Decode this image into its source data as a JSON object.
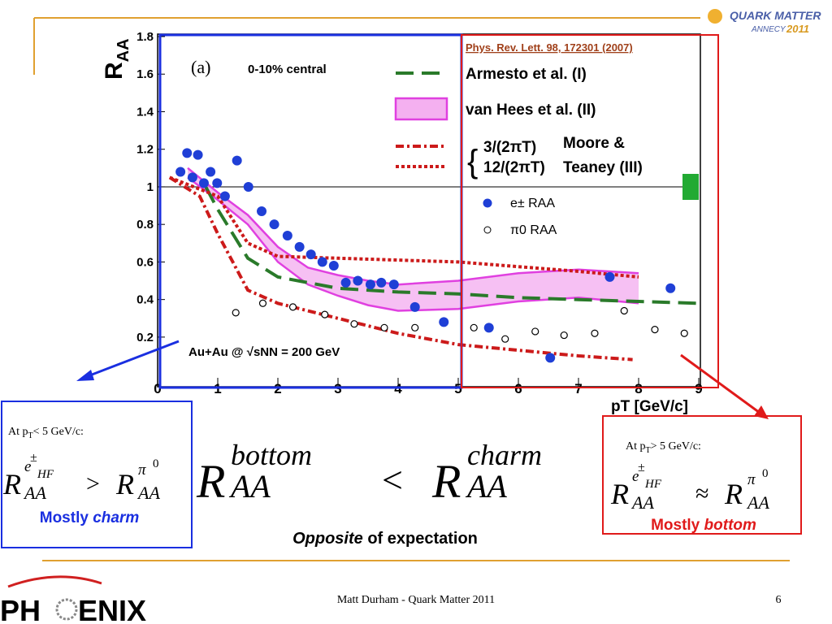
{
  "header": {
    "logo_title": "QUARK MATTER",
    "logo_place": "ANNECY",
    "logo_year": "2011"
  },
  "chart_data": {
    "type": "scatter",
    "reference": "Phys. Rev. Lett. 98, 172301 (2007)",
    "panel_label": "(a)",
    "centrality": "0-10% central",
    "system": "Au+Au @ √sNN = 200 GeV",
    "y_label": "R",
    "y_label_sub": "AA",
    "x_label": "pT [GeV/c]",
    "moore_label_1": "Moore &",
    "moore_label_2": "Teaney (III)",
    "xlim": [
      0,
      9
    ],
    "ylim": [
      -0.06,
      1.8
    ],
    "xticks": [
      0,
      1,
      2,
      3,
      4,
      5,
      6,
      7,
      8,
      9
    ],
    "yticks": [
      0.2,
      0.4,
      0.6,
      0.8,
      1,
      1.2,
      1.4,
      1.6,
      1.8
    ],
    "reference_line": 1,
    "series": [
      {
        "name": "e± RAA",
        "color": "#1f3fd6",
        "style": "marker-filled",
        "x": [
          0.38,
          0.49,
          0.58,
          0.67,
          0.77,
          0.88,
          0.99,
          1.12,
          1.32,
          1.51,
          1.73,
          1.94,
          2.16,
          2.36,
          2.55,
          2.74,
          2.93,
          3.13,
          3.33,
          3.54,
          3.72,
          3.93,
          4.28,
          4.76,
          5.51,
          6.53,
          7.52,
          8.53
        ],
        "values": [
          1.08,
          1.18,
          1.05,
          1.17,
          1.02,
          1.08,
          1.02,
          0.95,
          1.14,
          1.0,
          0.87,
          0.8,
          0.74,
          0.68,
          0.64,
          0.6,
          0.58,
          0.49,
          0.5,
          0.48,
          0.49,
          0.48,
          0.36,
          0.28,
          0.25,
          0.09,
          0.52,
          0.46
        ]
      },
      {
        "name": "π0 RAA",
        "color": "#000000",
        "style": "marker-open",
        "x": [
          1.3,
          1.75,
          2.25,
          2.78,
          3.27,
          3.77,
          4.28,
          5.26,
          5.78,
          6.28,
          6.76,
          7.27,
          7.76,
          8.27,
          8.76
        ],
        "values": [
          0.33,
          0.38,
          0.36,
          0.32,
          0.27,
          0.25,
          0.25,
          0.25,
          0.19,
          0.23,
          0.21,
          0.22,
          0.34,
          0.24,
          0.22
        ]
      },
      {
        "name": "van Hees et al. (II)",
        "color": "#e040e0",
        "style": "band",
        "x": [
          0.5,
          1,
          1.5,
          2,
          2.5,
          3,
          3.5,
          4,
          5,
          6,
          7,
          8
        ],
        "upper": [
          1.1,
          0.97,
          0.85,
          0.68,
          0.57,
          0.53,
          0.5,
          0.48,
          0.5,
          0.54,
          0.56,
          0.54
        ],
        "lower": [
          1.05,
          0.93,
          0.8,
          0.6,
          0.48,
          0.42,
          0.37,
          0.34,
          0.35,
          0.39,
          0.41,
          0.38
        ]
      },
      {
        "name": "Armesto et al. (I)",
        "color": "#2a7a2a",
        "style": "dashed",
        "x": [
          0.8,
          1,
          1.5,
          2,
          3,
          4,
          5,
          6,
          7,
          8,
          9
        ],
        "values": [
          1.0,
          0.88,
          0.62,
          0.52,
          0.46,
          0.44,
          0.43,
          0.41,
          0.4,
          0.39,
          0.38
        ]
      },
      {
        "name": "3/(2πT)",
        "color": "#cc1a1a",
        "style": "dashdot",
        "x": [
          0.2,
          0.7,
          1,
          1.5,
          2,
          3,
          4,
          5,
          6,
          7,
          7.9
        ],
        "values": [
          1.05,
          0.95,
          0.75,
          0.45,
          0.38,
          0.3,
          0.22,
          0.16,
          0.13,
          0.1,
          0.08
        ]
      },
      {
        "name": "12/(2πT)",
        "color": "#cc1a1a",
        "style": "dotted",
        "x": [
          0.2,
          1,
          1.5,
          2,
          3,
          5,
          7,
          8
        ],
        "values": [
          1.05,
          0.95,
          0.7,
          0.63,
          0.62,
          0.6,
          0.55,
          0.52
        ]
      }
    ]
  },
  "left_box": {
    "cond_p": "At p",
    "cond_sub": "T",
    "cond_rest": "< 5 GeV/c:",
    "f_R1": "R",
    "f_e": "e",
    "f_pm": "±",
    "f_hf": "HF",
    "f_aa1": "AA",
    "f_op": ">",
    "f_R2": "R",
    "f_pi": "π",
    "f_zero": "0",
    "f_aa2": "AA",
    "note": "Mostly ",
    "note_em": "charm"
  },
  "center": {
    "R1": "R",
    "sup1": "bottom",
    "sub1": "AA",
    "op": "<",
    "R2": "R",
    "sup2": "charm",
    "sub2": "AA",
    "note_em": "Opposite",
    "note": " of expectation"
  },
  "right_box": {
    "cond_p": "At p",
    "cond_sub": "T",
    "cond_rest": "> 5 GeV/c:",
    "f_R1": "R",
    "f_e": "e",
    "f_pm": "±",
    "f_hf": "HF",
    "f_aa1": "AA",
    "f_op": "≈",
    "f_R2": "R",
    "f_pi": "π",
    "f_zero": "0",
    "f_aa2": "AA",
    "note": "Mostly ",
    "note_em": "bottom"
  },
  "footer": {
    "text": "Matt Durham - Quark Matter 2011",
    "page": "6",
    "logo_left": "PH",
    "logo_right": "ENIX"
  }
}
